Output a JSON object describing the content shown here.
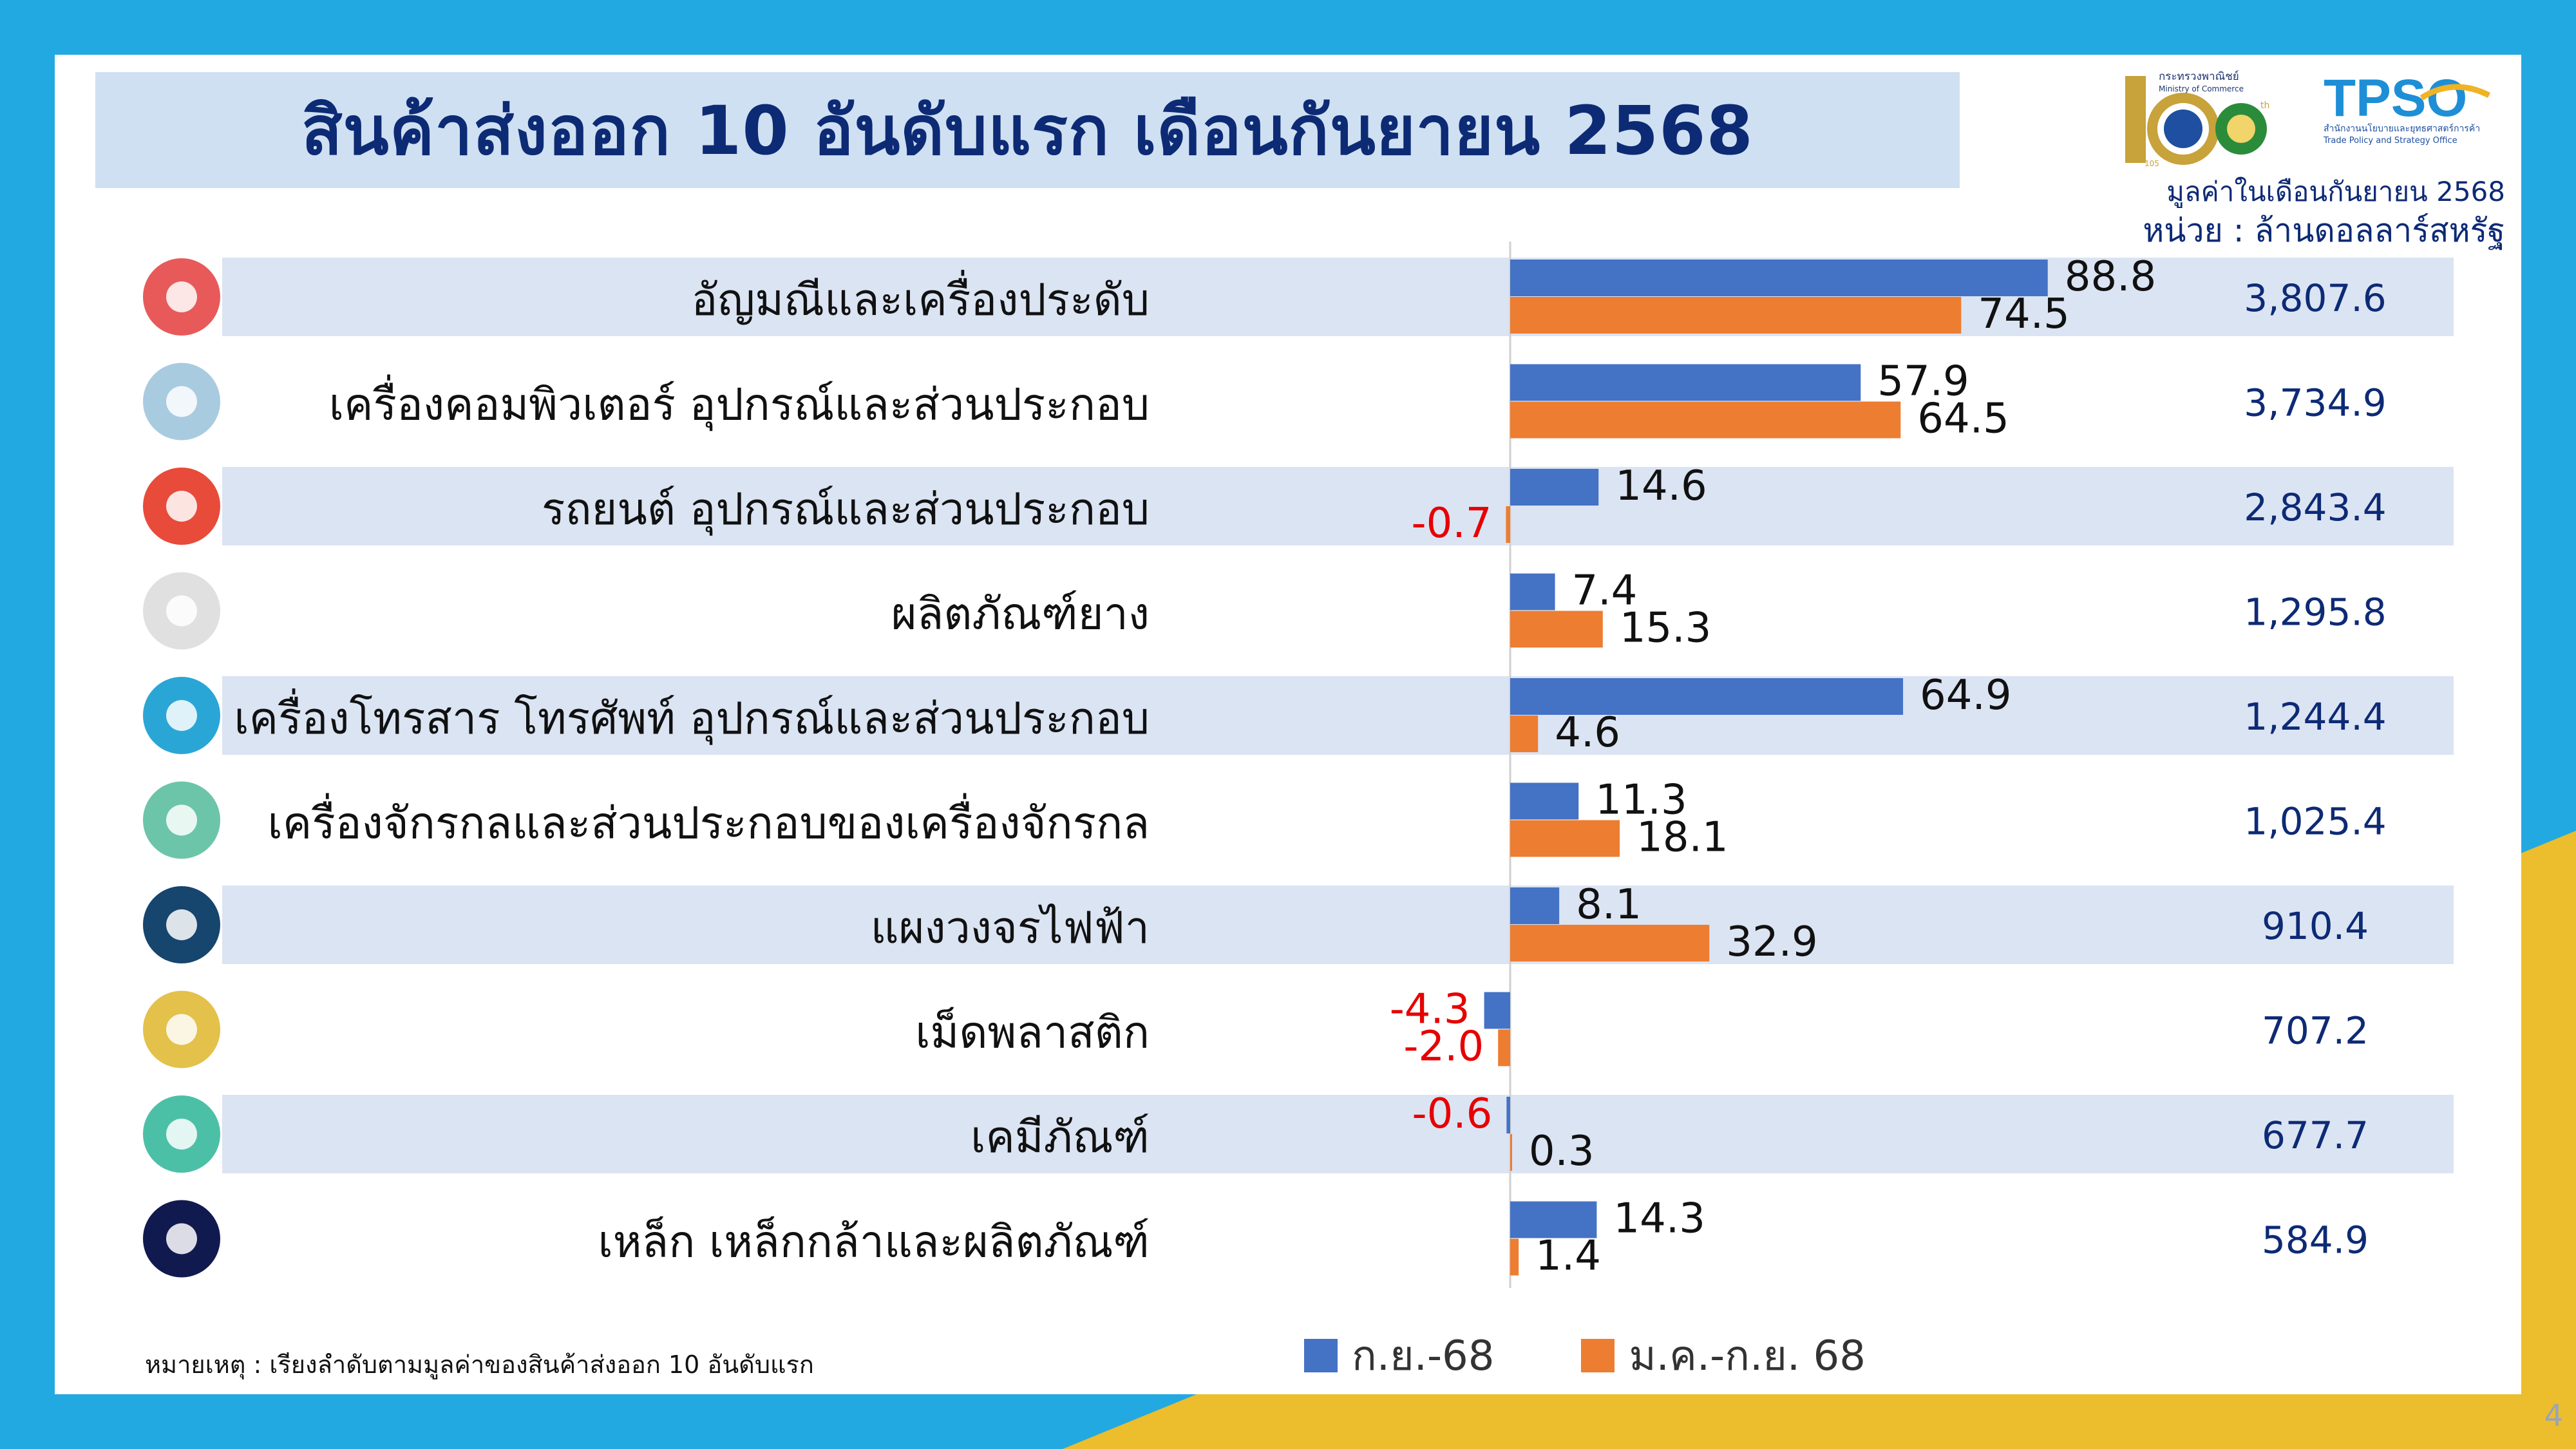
{
  "slide": {
    "title": "สินค้าส่งออก 10 อันดับแรก เดือนกันยายน 2568",
    "unit_line1": "มูลค่าในเดือนกันยายน 2568",
    "unit_line2": "หน่วย : ล้านดอลลาร์สหรัฐ",
    "footnote": "หมายเหตุ : เรียงลำดับตามมูลค่าของสินค้าส่งออก 10 อันดับแรก",
    "page_number": "4",
    "logo": {
      "ministry_th": "กระทรวงพาณิชย์",
      "ministry_en": "Ministry of Commerce",
      "anniversary": "105",
      "anniv_suffix": "th",
      "tpso": "TPSO",
      "tpso_th": "สำนักงานนโยบายและยุทธศาสตร์การค้า",
      "tpso_en": "Trade Policy and Strategy Office"
    }
  },
  "colors": {
    "blue": "#4472c4",
    "orange": "#ed7d31",
    "negative": "#e60000",
    "band": "#dbe4f3",
    "title_text": "#0d2a75",
    "background": "#23a9e1",
    "accent_yellow": "#ecbd2c"
  },
  "chart_data": {
    "type": "bar",
    "orientation": "horizontal",
    "unit": "%",
    "categories": [
      "อัญมณีและเครื่องประดับ",
      "เครื่องคอมพิวเตอร์ อุปกรณ์และส่วนประกอบ",
      "รถยนต์ อุปกรณ์และส่วนประกอบ",
      "ผลิตภัณฑ์ยาง",
      "เครื่องโทรสาร โทรศัพท์ อุปกรณ์และส่วนประกอบ",
      "เครื่องจักรกลและส่วนประกอบของเครื่องจักรกล",
      "แผงวงจรไฟฟ้า",
      "เม็ดพลาสติก",
      "เคมีภัณฑ์",
      "เหล็ก เหล็กกล้าและผลิตภัณฑ์"
    ],
    "icons": [
      "diamond-icon",
      "computer-icon",
      "car-icon",
      "tire-worker-icon",
      "smartphone-icon",
      "gear-icon",
      "circuit-icon",
      "plastic-pellet-icon",
      "chemistry-icon",
      "steel-beam-icon"
    ],
    "series": [
      {
        "name": "ก.ย.-68",
        "color": "#4472c4",
        "values": [
          88.8,
          57.9,
          14.6,
          7.4,
          64.9,
          11.3,
          8.1,
          -4.3,
          -0.6,
          14.3
        ],
        "labels": [
          "88.8",
          "57.9",
          "14.6",
          "7.4",
          "64.9",
          "11.3",
          "8.1",
          "-4.3",
          "-0.6",
          "14.3"
        ]
      },
      {
        "name": "ม.ค.-ก.ย. 68",
        "color": "#ed7d31",
        "values": [
          74.5,
          64.5,
          -0.7,
          15.3,
          4.6,
          18.1,
          32.9,
          -2.0,
          0.3,
          1.4
        ],
        "labels": [
          "74.5",
          "64.5",
          "-0.7",
          "15.3",
          "4.6",
          "18.1",
          "32.9",
          "-2.0",
          "0.3",
          "1.4"
        ]
      }
    ],
    "export_values": [
      3807.6,
      3734.9,
      2843.4,
      1295.8,
      1244.4,
      1025.4,
      910.4,
      707.2,
      677.7,
      584.9
    ],
    "export_value_labels": [
      "3,807.6",
      "3,734.9",
      "2,843.4",
      "1,295.8",
      "1,244.4",
      "1,025.4",
      "910.4",
      "707.2",
      "677.7",
      "584.9"
    ],
    "legend": [
      "ก.ย.-68",
      "ม.ค.-ก.ย. 68"
    ],
    "legend_position": "bottom"
  }
}
